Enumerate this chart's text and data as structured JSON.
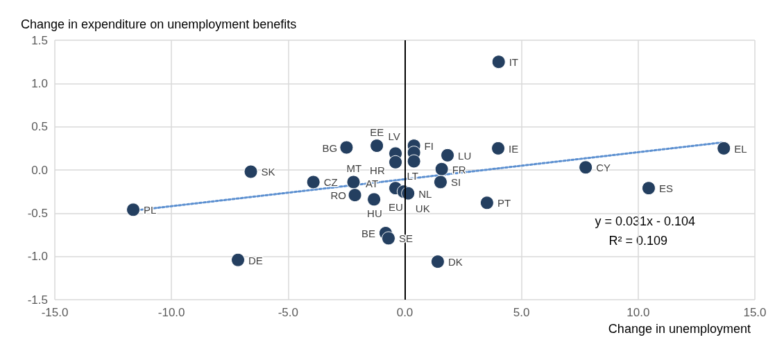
{
  "chart_data": {
    "type": "scatter",
    "xlabel": "Change in unemployment",
    "ylabel": "Change in expenditure on unemployment benefits",
    "x": [
      4.02,
      4.0,
      13.67,
      7.75,
      10.45,
      3.52,
      1.41,
      -7.15,
      -11.64,
      -6.6,
      -3.92,
      -2.5,
      -1.2,
      0.39,
      0.39,
      0.39,
      -0.4,
      -0.4,
      1.83,
      1.58,
      1.53,
      -2.2,
      -2.14,
      -1.32,
      -0.4,
      -0.05,
      0.14,
      -0.82,
      -0.7
    ],
    "series": [
      {
        "color": "#243f60",
        "values": [
          1.25,
          0.25,
          0.25,
          0.03,
          -0.21,
          -0.38,
          -1.06,
          -1.04,
          -0.46,
          -0.02,
          -0.14,
          0.26,
          0.28,
          0.28,
          0.2,
          0.1,
          0.19,
          0.09,
          0.17,
          0.01,
          -0.14,
          -0.14,
          -0.29,
          -0.34,
          -0.21,
          -0.25,
          -0.27,
          -0.73,
          -0.79
        ]
      },
      {
        "type": "line",
        "color": "#5b8fd0",
        "line_style": "dotted",
        "marker": "none",
        "x": [
          -11.64,
          13.67
        ],
        "values": [
          -0.47,
          0.32
        ]
      }
    ],
    "annotations": [
      {
        "text": "IT",
        "x": 4.02,
        "y": 1.25
      },
      {
        "text": "IE",
        "x": 4.0,
        "y": 0.25
      },
      {
        "text": "EL",
        "x": 13.67,
        "y": 0.25
      },
      {
        "text": "CY",
        "x": 7.75,
        "y": 0.03
      },
      {
        "text": "ES",
        "x": 10.45,
        "y": -0.21
      },
      {
        "text": "PT",
        "x": 3.52,
        "y": -0.38
      },
      {
        "text": "DK",
        "x": 1.41,
        "y": -1.06
      },
      {
        "text": "DE",
        "x": -7.15,
        "y": -1.04
      },
      {
        "text": "PL",
        "x": -11.64,
        "y": -0.46
      },
      {
        "text": "SK",
        "x": -6.6,
        "y": -0.02
      },
      {
        "text": "CZ",
        "x": -3.92,
        "y": -0.14
      },
      {
        "text": "BG",
        "x": -2.5,
        "y": 0.26
      },
      {
        "text": "EE",
        "x": -1.2,
        "y": 0.28
      },
      {
        "text": "FI",
        "x": 0.39,
        "y": 0.28
      },
      {
        "text": "LV",
        "x": 0.39,
        "y": 0.2
      },
      {
        "text": "LT",
        "x": 0.39,
        "y": 0.1
      },
      {
        "text": "HR",
        "x": -0.4,
        "y": 0.19
      },
      {
        "text": "AT",
        "x": -0.4,
        "y": 0.09
      },
      {
        "text": "LU",
        "x": 1.83,
        "y": 0.17
      },
      {
        "text": "FR",
        "x": 1.58,
        "y": 0.01
      },
      {
        "text": "SI",
        "x": 1.53,
        "y": -0.14
      },
      {
        "text": "MT",
        "x": -2.2,
        "y": -0.14
      },
      {
        "text": "RO",
        "x": -2.14,
        "y": -0.29
      },
      {
        "text": "HU",
        "x": -1.32,
        "y": -0.34
      },
      {
        "text": "EU",
        "x": -0.4,
        "y": -0.21
      },
      {
        "text": "UK",
        "x": -0.05,
        "y": -0.25
      },
      {
        "text": "NL",
        "x": 0.14,
        "y": -0.27
      },
      {
        "text": "BE",
        "x": -0.82,
        "y": -0.73
      },
      {
        "text": "SE",
        "x": -0.7,
        "y": -0.79
      },
      "y = 0.031x - 0.104",
      "R² = 0.109"
    ],
    "ref_lines": [
      {
        "axis": "x",
        "value": 0,
        "color": "#000000",
        "line_style": "solid"
      }
    ],
    "xlim": [
      -15,
      15
    ],
    "xticks": [
      {
        "value": -15,
        "label": "-15.0"
      },
      {
        "value": -10,
        "label": "-10.0"
      },
      {
        "value": -5,
        "label": "-5.0"
      },
      {
        "value": 0,
        "label": "0.0"
      },
      {
        "value": 5,
        "label": "5.0"
      },
      {
        "value": 10,
        "label": "10.0"
      },
      {
        "value": 15,
        "label": "15.0"
      }
    ],
    "ylim": [
      -1.5,
      1.5
    ],
    "yticks": [
      {
        "value": -1.5,
        "label": "-1.5"
      },
      {
        "value": -1,
        "label": "-1.0"
      },
      {
        "value": -0.5,
        "label": "-0.5"
      },
      {
        "value": 0,
        "label": "0.0"
      },
      {
        "value": 0.5,
        "label": "0.5"
      },
      {
        "value": 1,
        "label": "1.0"
      },
      {
        "value": 1.5,
        "label": "1.5"
      }
    ],
    "grid": true,
    "marker": "circle"
  }
}
